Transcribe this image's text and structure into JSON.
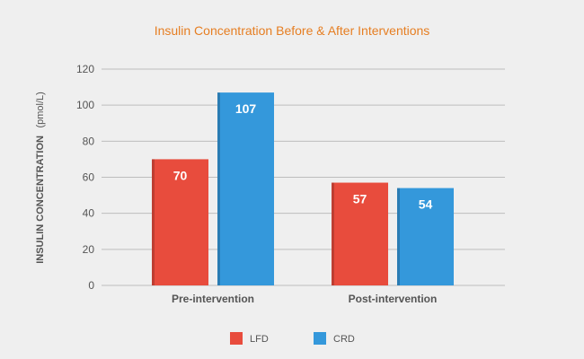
{
  "chart_data": {
    "type": "bar",
    "title": "Insulin Concentration Before & After Interventions",
    "xlabel": "",
    "ylabel": "INSULIN CONCENTRATION (pmol/L)",
    "ylabel_main": "INSULIN CONCENTRATION",
    "ylabel_unit": "(pmol/L)",
    "categories": [
      "Pre-intervention",
      "Post-intervention"
    ],
    "series": [
      {
        "name": "LFD",
        "values": [
          70,
          57
        ],
        "color": "#e84c3d"
      },
      {
        "name": "CRD",
        "values": [
          107,
          54
        ],
        "color": "#3498db"
      }
    ],
    "ylim": [
      0,
      120
    ],
    "yticks": [
      0,
      20,
      40,
      60,
      80,
      100,
      120
    ],
    "grid": true,
    "data_labels": true,
    "legend_position": "bottom-center"
  },
  "colors": {
    "background": "#efefef",
    "title": "#e67e22",
    "axis_text": "#555555",
    "grid": "#bdbdbd",
    "data_label": "#ffffff"
  }
}
